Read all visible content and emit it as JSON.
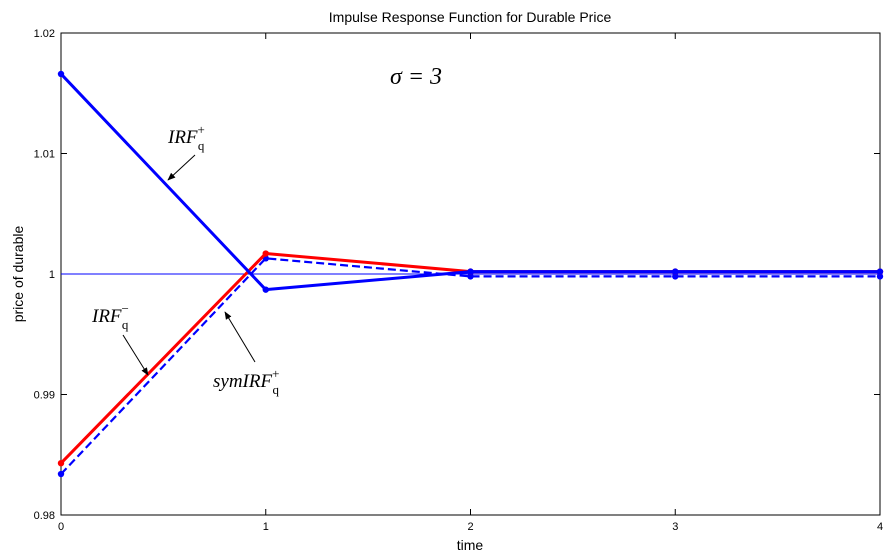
{
  "chart_data": {
    "type": "line",
    "title": "Impulse Response Function for Durable Price",
    "xlabel": "time",
    "ylabel": "price of durable",
    "xlim": [
      0,
      4
    ],
    "ylim": [
      0.98,
      1.02
    ],
    "x_ticks": [
      "0",
      "1",
      "2",
      "3",
      "4"
    ],
    "y_ticks": [
      "0.98",
      "0.99",
      "1",
      "1.01",
      "1.02"
    ],
    "grid": false,
    "series": [
      {
        "id": "irf_plus",
        "x": [
          0,
          1,
          2,
          3,
          4
        ],
        "values": [
          1.0166,
          0.9987,
          1.0002,
          1.0002,
          1.0002
        ],
        "color": "#0000ff",
        "style": "solid"
      },
      {
        "id": "irf_minus",
        "x": [
          0,
          1,
          2,
          3,
          4
        ],
        "values": [
          0.9843,
          1.0017,
          1.0002,
          1.0002,
          1.0002
        ],
        "color": "#ff0000",
        "style": "solid"
      },
      {
        "id": "sym_irf_plus",
        "x": [
          0,
          1,
          2,
          3,
          4
        ],
        "values": [
          0.9834,
          1.0013,
          0.9998,
          0.9998,
          0.9998
        ],
        "color": "#0000ff",
        "style": "dashed"
      }
    ],
    "reference_line": {
      "y": 1,
      "color": "#0000ff"
    },
    "annotations": {
      "sigma": {
        "text": "σ = 3"
      },
      "irf_plus": {
        "text": "IRF",
        "sub": "q",
        "sup": "+"
      },
      "irf_minus": {
        "text": "IRF",
        "sub": "q",
        "sup": "−"
      },
      "sym_irf_plus": {
        "text": "symIRF",
        "sub": "q",
        "sup": "+"
      }
    }
  }
}
